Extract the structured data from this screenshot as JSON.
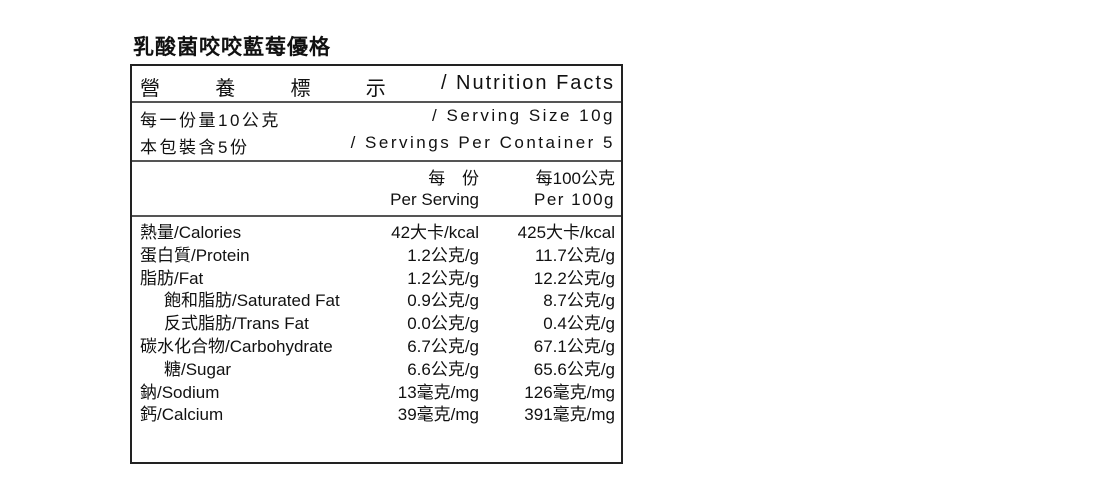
{
  "title": "乳酸菌咬咬藍莓優格",
  "header": {
    "chars": [
      "營",
      "養",
      "標",
      "示"
    ],
    "english": "/ Nutrition Facts"
  },
  "serving": {
    "size_zh": "每一份量10公克",
    "size_en": "/ Serving Size 10g",
    "per_container_zh": "本包裝含5份",
    "per_container_en": "/ Servings Per Container 5"
  },
  "columns": {
    "per_serving_zh": "每 份",
    "per_serving_en": "Per Serving",
    "per_100_zh": "每100公克",
    "per_100_en": "Per 100g"
  },
  "rows": [
    {
      "name": "熱量/Calories",
      "per_serving": "42大卡/kcal",
      "per_100": "425大卡/kcal",
      "indent": false
    },
    {
      "name": "蛋白質/Protein",
      "per_serving": "1.2公克/g",
      "per_100": "11.7公克/g",
      "indent": false
    },
    {
      "name": "脂肪/Fat",
      "per_serving": "1.2公克/g",
      "per_100": "12.2公克/g",
      "indent": false
    },
    {
      "name": "飽和脂肪/Saturated Fat",
      "per_serving": "0.9公克/g",
      "per_100": "8.7公克/g",
      "indent": true
    },
    {
      "name": "反式脂肪/Trans Fat",
      "per_serving": "0.0公克/g",
      "per_100": "0.4公克/g",
      "indent": true
    },
    {
      "name": "碳水化合物/Carbohydrate",
      "per_serving": "6.7公克/g",
      "per_100": "67.1公克/g",
      "indent": false
    },
    {
      "name": "糖/Sugar",
      "per_serving": "6.6公克/g",
      "per_100": "65.6公克/g",
      "indent": true
    },
    {
      "name": "鈉/Sodium",
      "per_serving": "13毫克/mg",
      "per_100": "126毫克/mg",
      "indent": false
    },
    {
      "name": "鈣/Calcium",
      "per_serving": "39毫克/mg",
      "per_100": "391毫克/mg",
      "indent": false
    }
  ]
}
